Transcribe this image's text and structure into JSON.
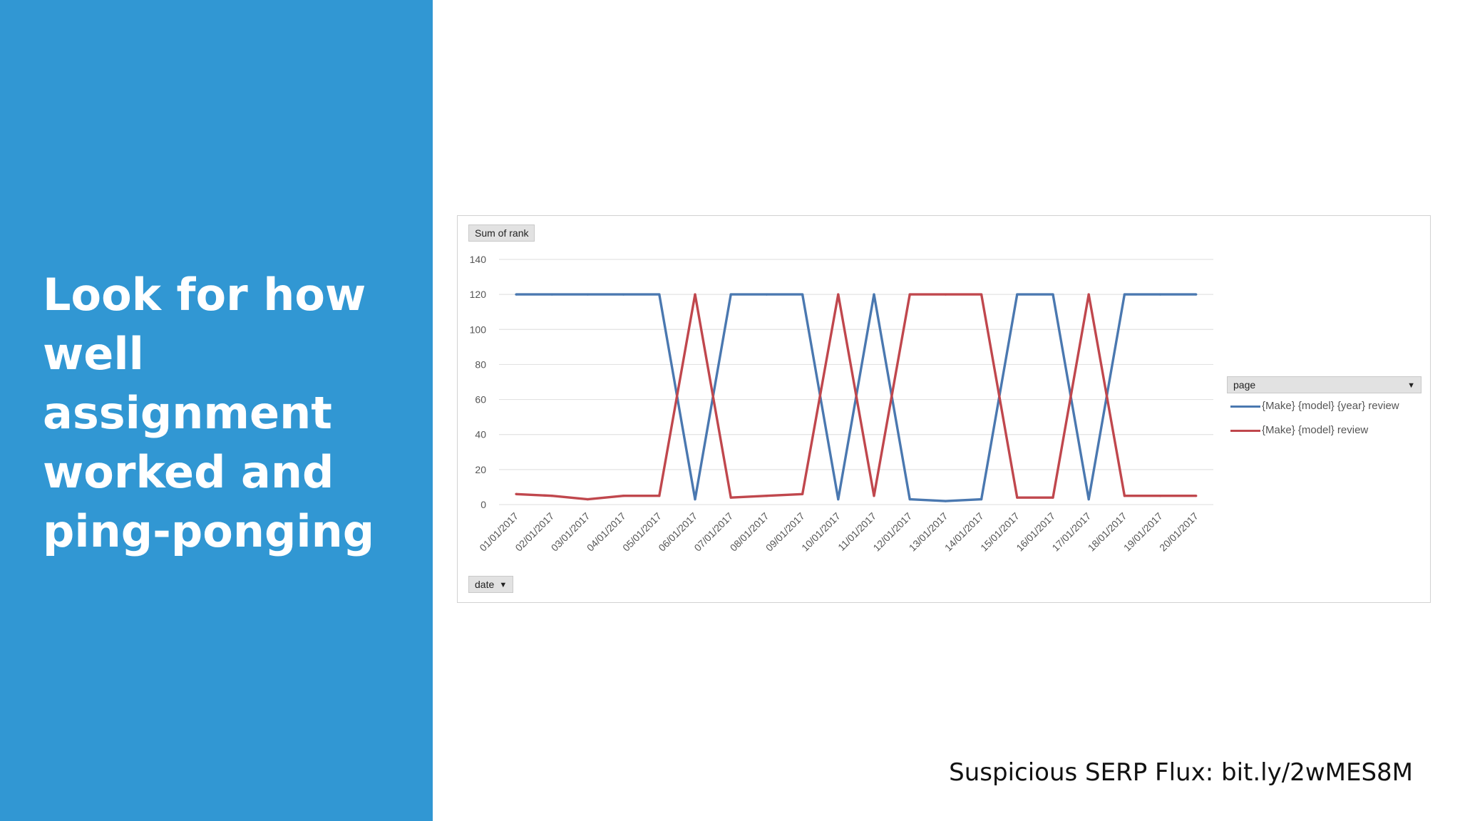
{
  "slide": {
    "heading": "Look for how well assignment worked and ping-ponging",
    "source_caption": "Suspicious SERP Flux: bit.ly/2wMES8M",
    "left_panel_color": "#3197d3"
  },
  "chart_data": {
    "type": "line",
    "measure_label": "Sum of rank",
    "row_field_label": "date",
    "legend_field_label": "page",
    "legend_position": "right",
    "grid": true,
    "ylim": [
      0,
      140
    ],
    "yticks": [
      0,
      20,
      40,
      60,
      80,
      100,
      120,
      140
    ],
    "categories": [
      "01/01/2017",
      "02/01/2017",
      "03/01/2017",
      "04/01/2017",
      "05/01/2017",
      "06/01/2017",
      "07/01/2017",
      "08/01/2017",
      "09/01/2017",
      "10/01/2017",
      "11/01/2017",
      "12/01/2017",
      "13/01/2017",
      "14/01/2017",
      "15/01/2017",
      "16/01/2017",
      "17/01/2017",
      "18/01/2017",
      "19/01/2017",
      "20/01/2017"
    ],
    "series": [
      {
        "name": "{Make} {model} {year} review",
        "color": "#4a78b0",
        "values": [
          120,
          120,
          120,
          120,
          120,
          3,
          120,
          120,
          120,
          3,
          120,
          3,
          2,
          3,
          120,
          120,
          3,
          120,
          120,
          120
        ]
      },
      {
        "name": "{Make} {model} review",
        "color": "#c0474d",
        "values": [
          6,
          5,
          3,
          5,
          5,
          120,
          4,
          5,
          6,
          120,
          5,
          120,
          120,
          120,
          4,
          4,
          120,
          5,
          5,
          5
        ]
      }
    ]
  }
}
